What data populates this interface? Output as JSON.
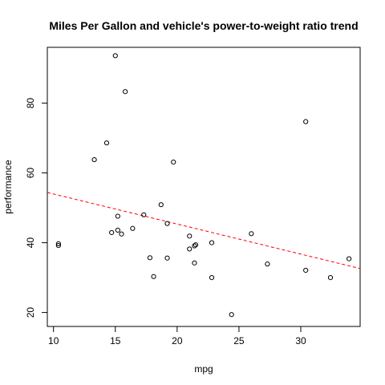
{
  "chart_data": {
    "type": "scatter",
    "title": "Miles Per Gallon and  vehicle's power-to-weight ratio trend",
    "xlabel": "mpg",
    "ylabel": "performance",
    "xlim": [
      9.5,
      34.8
    ],
    "ylim": [
      16,
      96
    ],
    "x_ticks": [
      10,
      15,
      20,
      25,
      30
    ],
    "y_ticks": [
      20,
      40,
      60,
      80
    ],
    "grid": false,
    "legend": "none",
    "points": [
      {
        "x": 10.4,
        "y": 39.2
      },
      {
        "x": 10.4,
        "y": 39.7
      },
      {
        "x": 13.3,
        "y": 63.8
      },
      {
        "x": 14.3,
        "y": 68.6
      },
      {
        "x": 14.7,
        "y": 42.9
      },
      {
        "x": 15.0,
        "y": 93.6
      },
      {
        "x": 15.2,
        "y": 43.6
      },
      {
        "x": 15.2,
        "y": 47.6
      },
      {
        "x": 15.5,
        "y": 42.5
      },
      {
        "x": 15.8,
        "y": 83.3
      },
      {
        "x": 16.4,
        "y": 44.1
      },
      {
        "x": 17.3,
        "y": 48.0
      },
      {
        "x": 17.8,
        "y": 35.7
      },
      {
        "x": 18.1,
        "y": 30.3
      },
      {
        "x": 18.7,
        "y": 50.9
      },
      {
        "x": 19.2,
        "y": 35.6
      },
      {
        "x": 19.2,
        "y": 45.5
      },
      {
        "x": 19.7,
        "y": 63.1
      },
      {
        "x": 21.0,
        "y": 41.9
      },
      {
        "x": 21.0,
        "y": 38.2
      },
      {
        "x": 21.4,
        "y": 34.2
      },
      {
        "x": 21.4,
        "y": 39.1
      },
      {
        "x": 21.5,
        "y": 39.4
      },
      {
        "x": 22.8,
        "y": 30.0
      },
      {
        "x": 22.8,
        "y": 40.0
      },
      {
        "x": 24.4,
        "y": 19.4
      },
      {
        "x": 26.0,
        "y": 42.6
      },
      {
        "x": 27.3,
        "y": 33.9
      },
      {
        "x": 30.4,
        "y": 32.1
      },
      {
        "x": 30.4,
        "y": 74.7
      },
      {
        "x": 32.4,
        "y": 30.0
      },
      {
        "x": 33.9,
        "y": 35.4
      }
    ],
    "trend_line": {
      "style": "dashed",
      "color": "#ff0000",
      "x": [
        9.5,
        34.8
      ],
      "y": [
        54.4,
        32.6
      ]
    }
  }
}
